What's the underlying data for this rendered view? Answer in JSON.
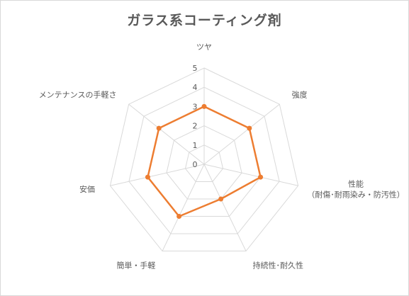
{
  "chart_data": {
    "type": "radar",
    "title": "ガラス系コーティング剤",
    "axes": [
      {
        "label": [
          "ツヤ"
        ]
      },
      {
        "label": [
          "強度"
        ]
      },
      {
        "label": [
          "性能",
          "（耐傷･耐雨染み・防汚性）"
        ]
      },
      {
        "label": [
          "持続性･耐久性"
        ]
      },
      {
        "label": [
          "簡単・手軽"
        ]
      },
      {
        "label": [
          "安価"
        ]
      },
      {
        "label": [
          "メンテナンスの手軽さ"
        ]
      }
    ],
    "values": [
      3,
      3,
      3,
      2,
      3,
      3,
      3
    ],
    "rlim": [
      0,
      5
    ],
    "ticks": [
      "0",
      "1",
      "2",
      "3",
      "4",
      "5"
    ],
    "grid": true,
    "legend": "none",
    "colors": {
      "series": "#ED7D31",
      "grid": "#d9d9d9",
      "text": "#595959"
    }
  }
}
